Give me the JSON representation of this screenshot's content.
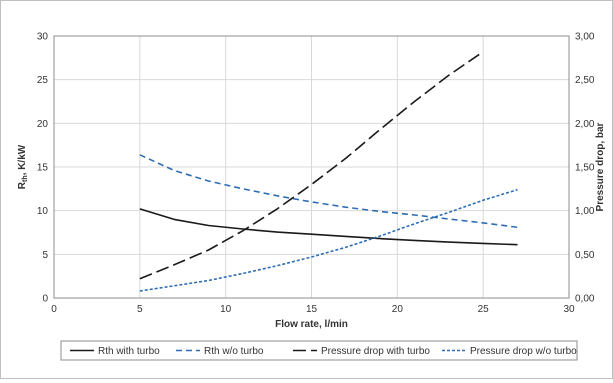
{
  "chart_data": {
    "type": "line",
    "title": "",
    "xlabel": "Flow rate, l/min",
    "ylabel_main": "R",
    "ylabel_sub": "th",
    "ylabel_rest": ", K/kW",
    "y2label": "Pressure drop, bar",
    "xlim": [
      0,
      30
    ],
    "ylim": [
      0,
      30
    ],
    "y2lim": [
      0,
      3
    ],
    "grid": true,
    "legend_position": "bottom",
    "x_ticks": [
      "0",
      "5",
      "10",
      "15",
      "20",
      "25",
      "30"
    ],
    "y_ticks": [
      "0",
      "5",
      "10",
      "15",
      "20",
      "25",
      "30"
    ],
    "y2_ticks": [
      "0,00",
      "0,50",
      "1,00",
      "1,50",
      "2,00",
      "2,50",
      "3,00"
    ],
    "series": [
      {
        "name": "Rth with turbo",
        "axis": "left",
        "color": "#1a1a1a",
        "dash": "solid",
        "x": [
          5,
          7,
          9,
          11,
          13,
          15,
          17,
          19,
          21,
          23,
          25,
          27
        ],
        "y": [
          10.2,
          9.0,
          8.3,
          7.9,
          7.55,
          7.3,
          7.05,
          6.8,
          6.6,
          6.4,
          6.25,
          6.1
        ]
      },
      {
        "name": "Rth w/o turbo",
        "axis": "left",
        "color": "#2e6db4",
        "dash": "dashed",
        "x": [
          5,
          7,
          9,
          11,
          13,
          15,
          17,
          19,
          21,
          23,
          25,
          27
        ],
        "y": [
          16.4,
          14.6,
          13.4,
          12.5,
          11.7,
          11.0,
          10.4,
          9.9,
          9.5,
          9.05,
          8.6,
          8.1
        ]
      },
      {
        "name": "Pressure drop with turbo",
        "axis": "right",
        "color": "#1a1a1a",
        "dash": "longdash",
        "x": [
          5,
          7,
          9,
          11,
          13,
          15,
          17,
          19,
          21,
          23,
          25
        ],
        "y": [
          0.22,
          0.38,
          0.55,
          0.77,
          1.02,
          1.3,
          1.6,
          1.93,
          2.25,
          2.55,
          2.82
        ]
      },
      {
        "name": "Pressure drop w/o turbo",
        "axis": "right",
        "color": "#2e6db4",
        "dash": "shortdash",
        "x": [
          5,
          7,
          9,
          11,
          13,
          15,
          17,
          19,
          21,
          23,
          25,
          27
        ],
        "y": [
          0.08,
          0.14,
          0.2,
          0.28,
          0.37,
          0.47,
          0.58,
          0.71,
          0.85,
          0.98,
          1.12,
          1.24
        ]
      }
    ]
  }
}
